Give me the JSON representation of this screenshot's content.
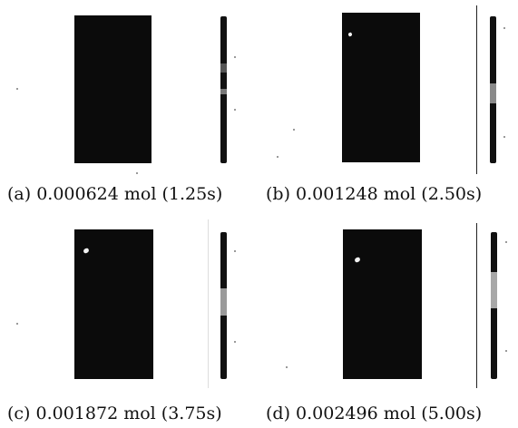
{
  "figure": {
    "panels": [
      {
        "label": "(a) 0.000624 mol (1.25s)",
        "spot_icon": "",
        "shading_color": "#0b0b0b"
      },
      {
        "label": "(b) 0.001248 mol (2.50s)",
        "spot_icon": "bubble-spot-icon",
        "shading_color": "#0b0b0b"
      },
      {
        "label": "(c) 0.001872 mol (3.75s)",
        "spot_icon": "bubble-spot-icon",
        "shading_color": "#0b0b0b"
      },
      {
        "label": "(d) 0.002496 mol (5.00s)",
        "spot_icon": "bubble-spot-icon",
        "shading_color": "#0b0b0b"
      }
    ],
    "colors": {
      "contour_dark": "#0b0b0b",
      "colorbar": "#111111",
      "spot": "#f2f2f2",
      "text": "#111111"
    }
  }
}
